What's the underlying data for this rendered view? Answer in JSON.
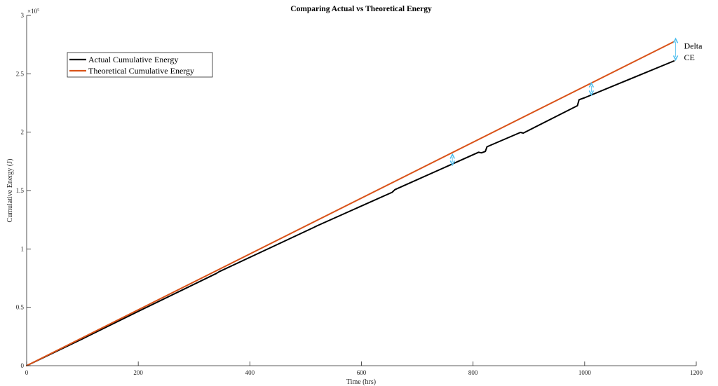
{
  "chart_data": {
    "type": "line",
    "title": "Comparing Actual vs Theoretical Energy",
    "xlabel": "Time (hrs)",
    "ylabel": "Cumulative Energy (J)",
    "y_exponent_label": "×10",
    "y_exponent_power": "5",
    "xlim": [
      0,
      1200
    ],
    "ylim": [
      0,
      300000
    ],
    "x_ticks": [
      0,
      200,
      400,
      600,
      800,
      1000,
      1200
    ],
    "y_ticks": [
      0,
      50000,
      100000,
      150000,
      200000,
      250000,
      300000
    ],
    "x_tick_labels": [
      "0",
      "200",
      "400",
      "600",
      "800",
      "1000",
      "1200"
    ],
    "y_tick_labels": [
      "0",
      "0.5",
      "1",
      "1.5",
      "2",
      "2.5",
      "3"
    ],
    "grid": false,
    "legend_position": "top-left",
    "series": [
      {
        "name": "Actual Cumulative Energy",
        "color": "#000000",
        "x": [
          0,
          100,
          200,
          340,
          345,
          515,
          520,
          655,
          660,
          810,
          815,
          822,
          825,
          885,
          890,
          987,
          990,
          1000,
          1160
        ],
        "y": [
          0,
          23000,
          46500,
          79000,
          80500,
          118500,
          119700,
          148500,
          150800,
          182800,
          182300,
          183500,
          187500,
          199800,
          199200,
          222700,
          227800,
          229500,
          261000
        ]
      },
      {
        "name": "Theoretical Cumulative Energy",
        "color": "#D95319",
        "x": [
          0,
          1160
        ],
        "y": [
          0,
          277500
        ]
      }
    ],
    "annotations": [
      {
        "type": "double-arrow",
        "x": 763,
        "y_from": 172000,
        "y_to": 181000,
        "color": "#4DBEEE"
      },
      {
        "type": "double-arrow",
        "x": 1012,
        "y_from": 232000,
        "y_to": 242000,
        "color": "#4DBEEE"
      },
      {
        "type": "double-arrow",
        "x": 1163,
        "y_from": 262000,
        "y_to": 280000,
        "color": "#4DBEEE"
      },
      {
        "type": "text",
        "x": 1178,
        "y": 274000,
        "text": "Delta"
      },
      {
        "type": "text",
        "x": 1178,
        "y": 264000,
        "text": "CE"
      }
    ]
  }
}
